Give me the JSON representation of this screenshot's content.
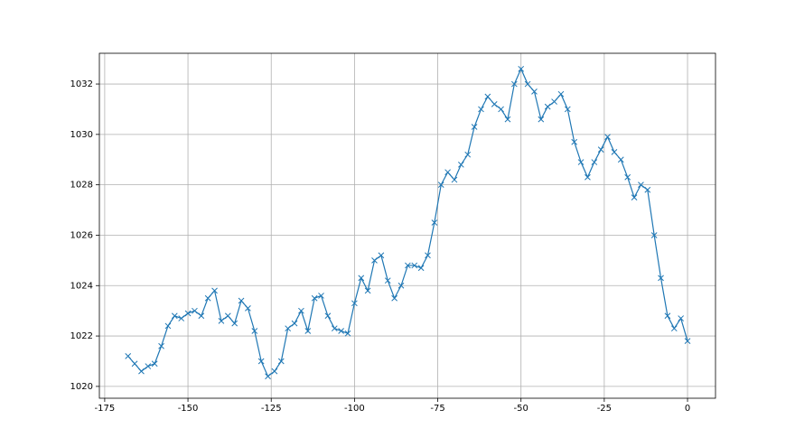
{
  "chart_data": {
    "type": "line",
    "marker": "x",
    "color": "#1f77b4",
    "grid": true,
    "x": [
      -168,
      -166,
      -164,
      -162,
      -160,
      -158,
      -156,
      -154,
      -152,
      -150,
      -148,
      -146,
      -144,
      -142,
      -140,
      -138,
      -136,
      -134,
      -132,
      -130,
      -128,
      -126,
      -124,
      -122,
      -120,
      -118,
      -116,
      -114,
      -112,
      -110,
      -108,
      -106,
      -104,
      -102,
      -100,
      -98,
      -96,
      -94,
      -92,
      -90,
      -88,
      -86,
      -84,
      -82,
      -80,
      -78,
      -76,
      -74,
      -72,
      -70,
      -68,
      -66,
      -64,
      -62,
      -60,
      -58,
      -56,
      -54,
      -52,
      -50,
      -48,
      -46,
      -44,
      -42,
      -40,
      -38,
      -36,
      -34,
      -32,
      -30,
      -28,
      -26,
      -24,
      -22,
      -20,
      -18,
      -16,
      -14,
      -12,
      -10,
      -8,
      -6,
      -4,
      -2,
      0
    ],
    "values": [
      1021.2,
      1020.9,
      1020.6,
      1020.8,
      1020.9,
      1021.6,
      1022.4,
      1022.8,
      1022.7,
      1022.9,
      1023.0,
      1022.8,
      1023.5,
      1023.8,
      1022.6,
      1022.8,
      1022.5,
      1023.4,
      1023.1,
      1022.2,
      1021.0,
      1020.4,
      1020.6,
      1021.0,
      1022.3,
      1022.5,
      1023.0,
      1022.2,
      1023.5,
      1023.6,
      1022.8,
      1022.3,
      1022.2,
      1022.1,
      1023.3,
      1024.3,
      1023.8,
      1025.0,
      1025.2,
      1024.2,
      1023.5,
      1024.0,
      1024.8,
      1024.8,
      1024.7,
      1025.2,
      1026.5,
      1028.0,
      1028.5,
      1028.2,
      1028.8,
      1029.2,
      1030.3,
      1031.0,
      1031.5,
      1031.2,
      1031.0,
      1030.6,
      1032.0,
      1032.6,
      1032.0,
      1031.7,
      1030.6,
      1031.1,
      1031.3,
      1031.6,
      1031.0,
      1029.7,
      1028.9,
      1028.3,
      1028.9,
      1029.4,
      1029.9,
      1029.3,
      1029.0,
      1028.3,
      1027.5,
      1028.0,
      1027.8,
      1026.0,
      1024.3,
      1022.8,
      1022.3,
      1022.7,
      1021.8
    ],
    "xlim": [
      -176.6,
      8.4
    ],
    "xticks": [
      -175,
      -150,
      -125,
      -100,
      -75,
      -50,
      -25,
      0
    ],
    "ylim": [
      1019.53,
      1033.22
    ],
    "yticks": [
      1020,
      1022,
      1024,
      1026,
      1028,
      1030,
      1032
    ]
  }
}
